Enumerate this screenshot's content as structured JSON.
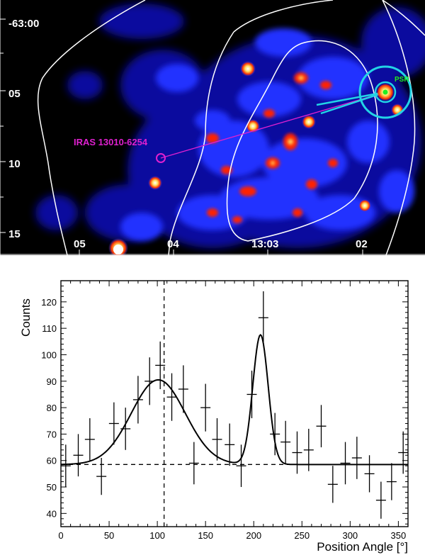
{
  "image_panel": {
    "dec_labels": [
      "-63:00",
      "05",
      "10",
      "15"
    ],
    "ra_labels": [
      "05",
      "04",
      "13:03",
      "02"
    ],
    "source_label": "IRAS 13010-6254",
    "psr_label": "PSR",
    "colors": {
      "background": "#000000",
      "contour": "#ffffff",
      "ring": "#22d3e6",
      "psr": "#22ee22",
      "source": "#e020d0",
      "emission_low": "#0a10b0",
      "emission_mid": "#2030ff",
      "emission_high": "#ff2200",
      "emission_peak": "#ffe060"
    }
  },
  "chart_data": {
    "type": "scatter",
    "title": "",
    "xlabel": "Position Angle [°]",
    "ylabel": "Counts",
    "xlim": [
      0,
      360
    ],
    "ylim": [
      35,
      128
    ],
    "xticks": [
      0,
      50,
      100,
      150,
      200,
      250,
      300,
      350
    ],
    "yticks": [
      40,
      50,
      60,
      70,
      80,
      90,
      100,
      110,
      120
    ],
    "points": [
      {
        "x": 5,
        "y": 58,
        "err": 8
      },
      {
        "x": 18,
        "y": 62,
        "err": 8
      },
      {
        "x": 30,
        "y": 68,
        "err": 8
      },
      {
        "x": 42,
        "y": 54,
        "err": 7
      },
      {
        "x": 55,
        "y": 74,
        "err": 8
      },
      {
        "x": 67,
        "y": 72,
        "err": 8
      },
      {
        "x": 80,
        "y": 83,
        "err": 9
      },
      {
        "x": 92,
        "y": 90,
        "err": 9
      },
      {
        "x": 103,
        "y": 96,
        "err": 9
      },
      {
        "x": 115,
        "y": 84,
        "err": 9
      },
      {
        "x": 127,
        "y": 87,
        "err": 9
      },
      {
        "x": 138,
        "y": 59,
        "err": 8
      },
      {
        "x": 150,
        "y": 80,
        "err": 9
      },
      {
        "x": 162,
        "y": 68,
        "err": 8
      },
      {
        "x": 175,
        "y": 66,
        "err": 8
      },
      {
        "x": 187,
        "y": 58,
        "err": 8
      },
      {
        "x": 198,
        "y": 85,
        "err": 9
      },
      {
        "x": 210,
        "y": 114,
        "err": 10
      },
      {
        "x": 222,
        "y": 70,
        "err": 8
      },
      {
        "x": 233,
        "y": 67,
        "err": 8
      },
      {
        "x": 245,
        "y": 63,
        "err": 8
      },
      {
        "x": 257,
        "y": 64,
        "err": 8
      },
      {
        "x": 270,
        "y": 73,
        "err": 8
      },
      {
        "x": 282,
        "y": 51,
        "err": 7
      },
      {
        "x": 295,
        "y": 59,
        "err": 8
      },
      {
        "x": 307,
        "y": 61,
        "err": 8
      },
      {
        "x": 320,
        "y": 55,
        "err": 7
      },
      {
        "x": 332,
        "y": 45,
        "err": 7
      },
      {
        "x": 343,
        "y": 52,
        "err": 7
      },
      {
        "x": 355,
        "y": 63,
        "err": 8
      }
    ],
    "model": {
      "baseline": 58.5,
      "gaussians": [
        {
          "amplitude": 32,
          "center": 101,
          "sigma": 28
        },
        {
          "amplitude": 49,
          "center": 207,
          "sigma": 8
        }
      ]
    },
    "baseline_line_y": 58.5,
    "vertical_line_x": 107
  }
}
